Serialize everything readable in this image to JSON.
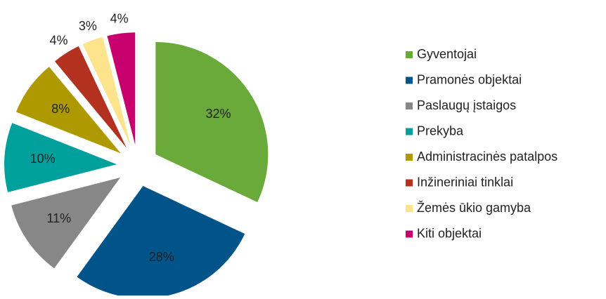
{
  "chart_data": {
    "type": "pie",
    "categories": [
      "Gyventojai",
      "Pramonės objektai",
      "Paslaugų įstaigos",
      "Prekyba",
      "Administracinės patalpos",
      "Inžineriniai tinklai",
      "Žemės ūkio gamyba",
      "Kiti objektai"
    ],
    "values": [
      32,
      28,
      11,
      10,
      8,
      4,
      3,
      4
    ],
    "value_labels": [
      "32%",
      "28%",
      "11%",
      "10%",
      "8%",
      "4%",
      "3%",
      "4%"
    ],
    "colors": [
      "#6aaa3a",
      "#00548a",
      "#878787",
      "#00a19c",
      "#ae9a00",
      "#b3311f",
      "#fde38c",
      "#c8006e"
    ],
    "legend": "right"
  }
}
